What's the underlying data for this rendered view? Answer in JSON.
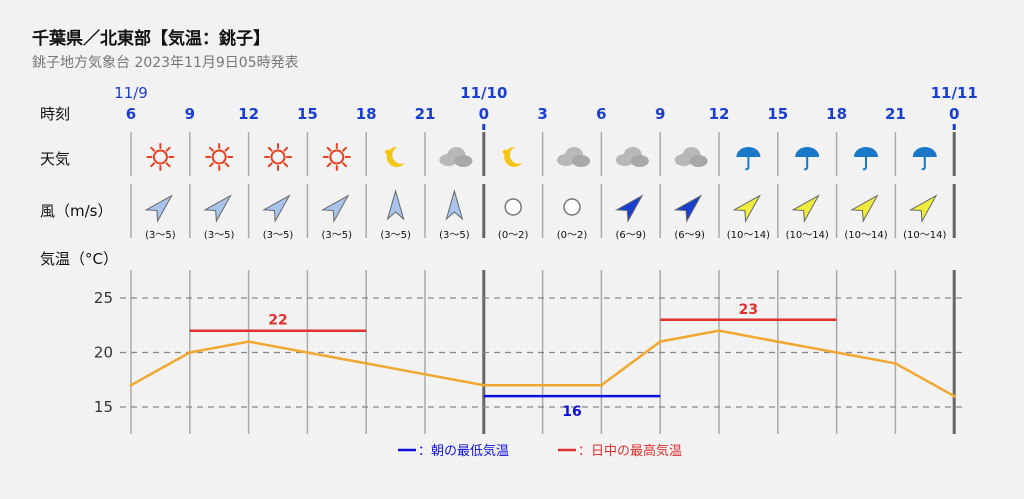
{
  "header": {
    "title": "千葉県／北東部【気温：銚子】",
    "subtitle": "銚子地方気象台 2023年11月9日05時発表"
  },
  "row_labels": {
    "time": "時刻",
    "weather": "天気",
    "wind": "風（m/s）",
    "temp": "気温（°C）"
  },
  "dates": [
    {
      "label": "11/9",
      "index": 0,
      "bold": false
    },
    {
      "label": "11/10",
      "index": 6,
      "bold": true
    },
    {
      "label": "11/11",
      "index": 14,
      "bold": true
    }
  ],
  "hours": [
    "6",
    "9",
    "12",
    "15",
    "18",
    "21",
    "0",
    "3",
    "6",
    "9",
    "12",
    "15",
    "18",
    "21",
    "0"
  ],
  "weather_icons": [
    "sun-icon",
    "sun-icon",
    "sun-icon",
    "sun-icon",
    "moon-icon",
    "cloud-icon",
    "moon-icon",
    "cloud-icon",
    "cloud-icon",
    "cloud-icon",
    "umbrella-icon",
    "umbrella-icon",
    "umbrella-icon",
    "umbrella-icon"
  ],
  "wind": [
    {
      "dir": 225,
      "label": "(3〜5)",
      "color": "#a9c4ec"
    },
    {
      "dir": 225,
      "label": "(3〜5)",
      "color": "#a9c4ec"
    },
    {
      "dir": 225,
      "label": "(3〜5)",
      "color": "#a9c4ec"
    },
    {
      "dir": 225,
      "label": "(3〜5)",
      "color": "#a9c4ec"
    },
    {
      "dir": 180,
      "label": "(3〜5)",
      "color": "#a9c4ec"
    },
    {
      "dir": 180,
      "label": "(3〜5)",
      "color": "#a9c4ec"
    },
    {
      "dir": null,
      "label": "(0〜2)",
      "color": "#ffffff"
    },
    {
      "dir": null,
      "label": "(0〜2)",
      "color": "#ffffff"
    },
    {
      "dir": 225,
      "label": "(6〜9)",
      "color": "#1a3fd0"
    },
    {
      "dir": 225,
      "label": "(6〜9)",
      "color": "#1a3fd0"
    },
    {
      "dir": 225,
      "label": "(10〜14)",
      "color": "#f0ec3c"
    },
    {
      "dir": 225,
      "label": "(10〜14)",
      "color": "#f0ec3c"
    },
    {
      "dir": 225,
      "label": "(10〜14)",
      "color": "#f0ec3c"
    },
    {
      "dir": 225,
      "label": "(10〜14)",
      "color": "#f0ec3c"
    }
  ],
  "chart_data": {
    "type": "line",
    "x": [
      "11/9 6",
      "9",
      "12",
      "15",
      "18",
      "21",
      "11/10 0",
      "3",
      "6",
      "9",
      "12",
      "15",
      "18",
      "21",
      "11/11 0"
    ],
    "series": [
      {
        "values": [
          17,
          20,
          21,
          20,
          19,
          18,
          17,
          17,
          17,
          21,
          22,
          21,
          20,
          19,
          16
        ],
        "color": "#f0a830"
      }
    ],
    "ylim": [
      12.5,
      27.5
    ],
    "yticks": [
      15,
      20,
      25
    ],
    "ylabel": "気温（°C）",
    "grid": true,
    "annotations": [
      {
        "kind": "max",
        "value": 22,
        "from": 1,
        "to": 4,
        "color": "#e03030"
      },
      {
        "kind": "min",
        "value": 16,
        "from": 6,
        "to": 9,
        "color": "#1010e0"
      },
      {
        "kind": "max",
        "value": 23,
        "from": 9,
        "to": 12,
        "color": "#e03030"
      }
    ]
  },
  "legend": {
    "min_label": "：朝の最低気温",
    "max_label": "：日中の最高気温",
    "min_color": "#1010e0",
    "max_color": "#e03030"
  }
}
